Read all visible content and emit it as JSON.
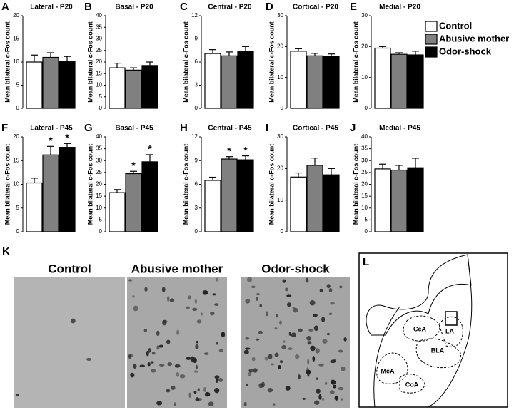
{
  "legend": [
    {
      "name": "Control",
      "color": "#ffffff"
    },
    {
      "name": "Abusive mother",
      "color": "#808080"
    },
    {
      "name": "Odor-shock",
      "color": "#000000"
    }
  ],
  "chart_data": [
    {
      "type": "bar",
      "panel": "A",
      "title": "Lateral - P20",
      "y_label": "Mean bilateral c-Fos count",
      "values": [
        10,
        11,
        10.2
      ],
      "errors": [
        1.5,
        1,
        1
      ],
      "annotations": [
        null,
        null,
        null
      ],
      "ylim": [
        0,
        20
      ],
      "yticks": [
        0,
        5,
        10,
        15,
        20
      ]
    },
    {
      "type": "bar",
      "panel": "B",
      "title": "Basal - P20",
      "y_label": "Mean bilateral c-Fos count",
      "values": [
        17.5,
        16.5,
        18.5
      ],
      "errors": [
        2,
        1,
        1.5
      ],
      "annotations": [
        null,
        null,
        null
      ],
      "ylim": [
        0,
        40
      ],
      "yticks": [
        0,
        5,
        10,
        15,
        20,
        25,
        30,
        35,
        40
      ]
    },
    {
      "type": "bar",
      "panel": "C",
      "title": "Central - P20",
      "y_label": "Mean bilateral c-Fos count",
      "values": [
        7.1,
        6.8,
        7.4
      ],
      "errors": [
        0.5,
        0.5,
        0.6
      ],
      "annotations": [
        null,
        null,
        null
      ],
      "ylim": [
        0,
        12
      ],
      "yticks": [
        0,
        3,
        6,
        9,
        12
      ]
    },
    {
      "type": "bar",
      "panel": "D",
      "title": "Cortical - P20",
      "y_label": "Mean bilateral c-Fos count",
      "values": [
        18.5,
        17,
        16.8
      ],
      "errors": [
        0.8,
        0.8,
        0.8
      ],
      "annotations": [
        null,
        null,
        null
      ],
      "ylim": [
        0,
        30
      ],
      "yticks": [
        0,
        10,
        20,
        30
      ]
    },
    {
      "type": "bar",
      "panel": "E",
      "title": "Medial - P20",
      "y_label": "Mean bilateral c-Fos count",
      "values": [
        19.5,
        17.5,
        17.3
      ],
      "errors": [
        0.5,
        0.5,
        1.2
      ],
      "annotations": [
        null,
        null,
        null
      ],
      "ylim": [
        0,
        30
      ],
      "yticks": [
        0,
        10,
        20,
        30
      ]
    },
    {
      "type": "bar",
      "panel": "F",
      "title": "Lateral - P45",
      "y_label": "Mean bilateral c-Fos count",
      "values": [
        10.3,
        16.2,
        17.8
      ],
      "errors": [
        1,
        1.8,
        0.8
      ],
      "annotations": [
        null,
        "*",
        "*"
      ],
      "ylim": [
        0,
        20
      ],
      "yticks": [
        0,
        5,
        10,
        15,
        20
      ]
    },
    {
      "type": "bar",
      "panel": "G",
      "title": "Basal - P45",
      "y_label": "Mean bilateral c-Fos count",
      "values": [
        16.5,
        24.5,
        29.5
      ],
      "errors": [
        1.3,
        1,
        3
      ],
      "annotations": [
        null,
        "*",
        "*"
      ],
      "ylim": [
        0,
        40
      ],
      "yticks": [
        0,
        5,
        10,
        15,
        20,
        25,
        30,
        35,
        40
      ]
    },
    {
      "type": "bar",
      "panel": "H",
      "title": "Central - P45",
      "y_label": "Mean bilateral c-Fos count",
      "values": [
        6.5,
        9.2,
        9.1
      ],
      "errors": [
        0.4,
        0.3,
        0.5
      ],
      "annotations": [
        null,
        "*",
        "*"
      ],
      "ylim": [
        0,
        12
      ],
      "yticks": [
        0,
        3,
        6,
        9,
        12
      ]
    },
    {
      "type": "bar",
      "panel": "I",
      "title": "Cortical - P45",
      "y_label": "Mean bilateral c-Fos count",
      "values": [
        17.3,
        21,
        18
      ],
      "errors": [
        1.3,
        2.3,
        2
      ],
      "annotations": [
        null,
        null,
        null
      ],
      "ylim": [
        0,
        30
      ],
      "yticks": [
        0,
        10,
        20,
        30
      ]
    },
    {
      "type": "bar",
      "panel": "J",
      "title": "Medial - P45",
      "y_label": "Mean bilateral c-Fos count",
      "values": [
        26.5,
        26,
        27
      ],
      "errors": [
        2,
        2,
        4
      ],
      "annotations": [
        null,
        null,
        null
      ],
      "ylim": [
        0,
        40
      ],
      "yticks": [
        0,
        5,
        10,
        15,
        20,
        25,
        30,
        35,
        40
      ]
    }
  ],
  "micrographs": {
    "panel": "K",
    "titles": [
      "Control",
      "Abusive mother",
      "Odor-shock"
    ]
  },
  "diagram": {
    "panel": "L",
    "regions": [
      "CeA",
      "LA",
      "BLA",
      "MeA",
      "CoA"
    ]
  }
}
